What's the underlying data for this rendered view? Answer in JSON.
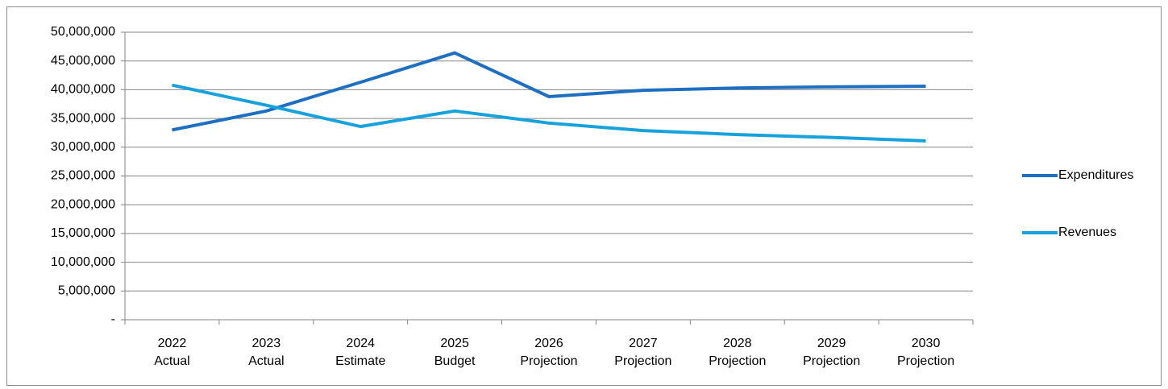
{
  "chart_data": {
    "type": "line",
    "categories": [
      [
        "2022",
        "Actual"
      ],
      [
        "2023",
        "Actual"
      ],
      [
        "2024",
        "Estimate"
      ],
      [
        "2025",
        "Budget"
      ],
      [
        "2026",
        "Projection"
      ],
      [
        "2027",
        "Projection"
      ],
      [
        "2028",
        "Projection"
      ],
      [
        "2029",
        "Projection"
      ],
      [
        "2030",
        "Projection"
      ]
    ],
    "series": [
      {
        "name": "Expenditures",
        "color": "#1e6fc1",
        "values": [
          33000000,
          36300000,
          41300000,
          46400000,
          38800000,
          39900000,
          40300000,
          40500000,
          40600000
        ]
      },
      {
        "name": "Revenues",
        "color": "#17a2dc",
        "values": [
          40800000,
          37300000,
          33600000,
          36300000,
          34200000,
          32900000,
          32200000,
          31700000,
          31100000
        ]
      }
    ],
    "ylim": [
      0,
      50000000
    ],
    "yticks": [
      {
        "value": 0,
        "label": "-"
      },
      {
        "value": 5000000,
        "label": "5,000,000"
      },
      {
        "value": 10000000,
        "label": "10,000,000"
      },
      {
        "value": 15000000,
        "label": "15,000,000"
      },
      {
        "value": 20000000,
        "label": "20,000,000"
      },
      {
        "value": 25000000,
        "label": "25,000,000"
      },
      {
        "value": 30000000,
        "label": "30,000,000"
      },
      {
        "value": 35000000,
        "label": "35,000,000"
      },
      {
        "value": 40000000,
        "label": "40,000,000"
      },
      {
        "value": 45000000,
        "label": "45,000,000"
      },
      {
        "value": 50000000,
        "label": "50,000,000"
      }
    ],
    "grid": true,
    "legend": "right"
  }
}
